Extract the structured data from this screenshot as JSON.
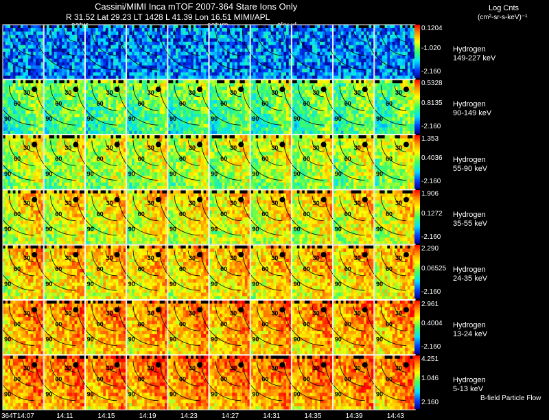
{
  "header": {
    "line1": "Cassini/MIMI Inca mTOF  2007-364   Stare   Ions Only",
    "line2": "R     31.52 Lat 29.23 LT 1428 L       41.39 Lon       16.51  MIMI/APL",
    "labels": [
      "satur",
      "saturn",
      "sky-xl"
    ]
  },
  "units": {
    "title": "Log Cnts",
    "units": "(cm²-sr-s-keV)⁻¹"
  },
  "footer_note": "B-field Particle Flow",
  "colors": {
    "background": "#000000",
    "contour": "#000000",
    "gap": "#ffffff",
    "colormap": [
      "#000090",
      "#0040ff",
      "#00e0ff",
      "#40ff60",
      "#ffff00",
      "#ff8c00",
      "#ff0000"
    ]
  },
  "chart_data": {
    "type": "heatmap",
    "title": "Cassini/MIMI Inca mTOF  2007-364   Stare   Ions Only",
    "xlabel": "",
    "ylabel": "",
    "x": [
      "364T14:07",
      "14:11",
      "14:15",
      "14:19",
      "14:23",
      "14:27",
      "14:31",
      "14:35",
      "14:39",
      "14:43"
    ],
    "rows": [
      {
        "species": "Hydrogen",
        "energy": "149-227 keV",
        "cmax": "0.1204",
        "cmid": "-1.020",
        "cmin": "-2.160",
        "mean_level": 0.3
      },
      {
        "species": "Hydrogen",
        "energy": "90-149 keV",
        "cmax": "0.5328",
        "cmid": "0.8135",
        "cmin": "-2.160",
        "mean_level": 0.48
      },
      {
        "species": "Hydrogen",
        "energy": "55-90 keV",
        "cmax": "1.353",
        "cmid": "0.4036",
        "cmin": "-2.160",
        "mean_level": 0.58
      },
      {
        "species": "Hydrogen",
        "energy": "35-55 keV",
        "cmax": "1.906",
        "cmid": "0.1272",
        "cmin": "-2.160",
        "mean_level": 0.65
      },
      {
        "species": "Hydrogen",
        "energy": "24-35 keV",
        "cmax": "2.290",
        "cmid": "0.06525",
        "cmin": "-2.160",
        "mean_level": 0.7
      },
      {
        "species": "Hydrogen",
        "energy": "13-24 keV",
        "cmax": "2.961",
        "cmid": "0.4004",
        "cmin": "-2.160",
        "mean_level": 0.76
      },
      {
        "species": "Hydrogen",
        "energy": "5-13 keV",
        "cmax": "4.251",
        "cmid": "1.046",
        "cmin": "2.160",
        "mean_level": 0.8
      }
    ],
    "contour_labels": [
      "30",
      "60",
      "90"
    ]
  }
}
